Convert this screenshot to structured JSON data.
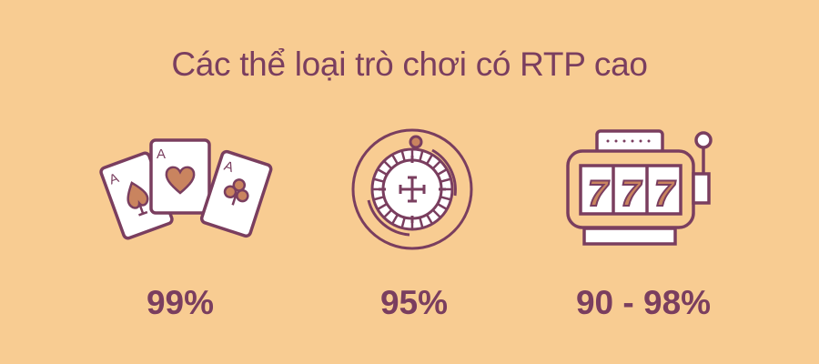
{
  "title": "Các thể loại trò chơi có RTP cao",
  "colors": {
    "background": "#f8cc92",
    "primary": "#7a3e5f",
    "accent": "#c9845f",
    "white": "#ffffff"
  },
  "categories": [
    {
      "icon": "playing-cards-icon",
      "card_letter": "A",
      "rtp": "99%"
    },
    {
      "icon": "roulette-wheel-icon",
      "rtp": "95%"
    },
    {
      "icon": "slot-machine-icon",
      "reel_symbol": "7",
      "rtp": "90 - 98%"
    }
  ]
}
